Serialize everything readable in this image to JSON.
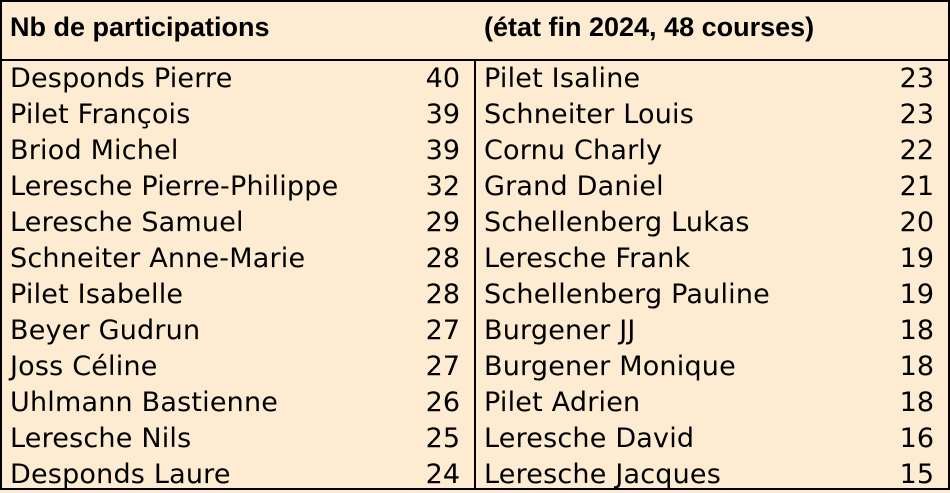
{
  "header": {
    "left_title": "Nb de participations",
    "right_title": "(état fin 2024, 48 courses)"
  },
  "left_rows": [
    {
      "name": "Desponds Pierre",
      "count": "40"
    },
    {
      "name": "Pilet François",
      "count": "39"
    },
    {
      "name": "Briod Michel",
      "count": "39"
    },
    {
      "name": "Leresche Pierre-Philippe",
      "count": "32"
    },
    {
      "name": "Leresche Samuel",
      "count": "29"
    },
    {
      "name": "Schneiter Anne-Marie",
      "count": "28"
    },
    {
      "name": "Pilet Isabelle",
      "count": "28"
    },
    {
      "name": "Beyer Gudrun",
      "count": "27"
    },
    {
      "name": "Joss Céline",
      "count": "27"
    },
    {
      "name": "Uhlmann Bastienne",
      "count": "26"
    },
    {
      "name": "Leresche Nils",
      "count": "25"
    },
    {
      "name": "Desponds Laure",
      "count": "24"
    }
  ],
  "right_rows": [
    {
      "name": "Pilet Isaline",
      "count": "23"
    },
    {
      "name": "Schneiter Louis",
      "count": "23"
    },
    {
      "name": "Cornu Charly",
      "count": "22"
    },
    {
      "name": "Grand Daniel",
      "count": "21"
    },
    {
      "name": "Schellenberg Lukas",
      "count": "20"
    },
    {
      "name": "Leresche Frank",
      "count": "19"
    },
    {
      "name": "Schellenberg Pauline",
      "count": "19"
    },
    {
      "name": "Burgener JJ",
      "count": "18"
    },
    {
      "name": "Burgener Monique",
      "count": "18"
    },
    {
      "name": "Pilet Adrien",
      "count": "18"
    },
    {
      "name": "Leresche David",
      "count": "16"
    },
    {
      "name": "Leresche Jacques",
      "count": "15"
    }
  ]
}
